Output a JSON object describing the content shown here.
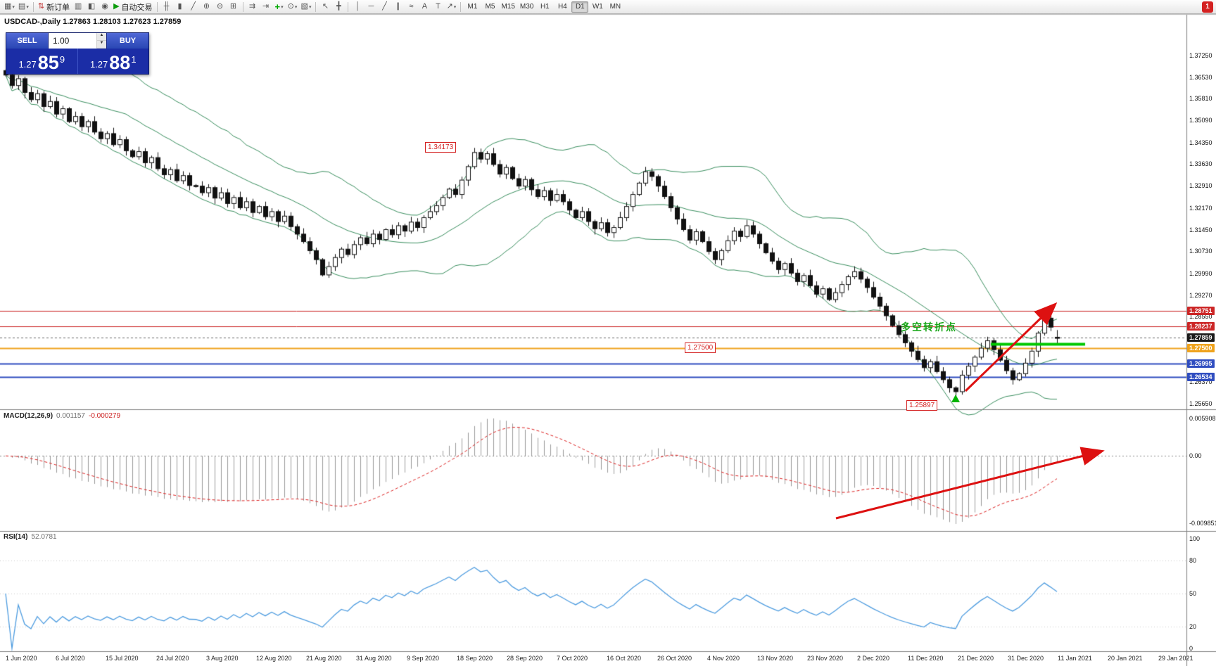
{
  "window": {
    "title_info": "USDCAD-,Daily  1.27863 1.28103 1.27623 1.27859"
  },
  "toolbar": {
    "new_order_label": "新订单",
    "autotrading_label": "自动交易",
    "timeframes": [
      "M1",
      "M5",
      "M15",
      "M30",
      "H1",
      "H4",
      "D1",
      "W1",
      "MN"
    ],
    "active_timeframe": "D1",
    "badge": "1"
  },
  "one_click": {
    "sell_label": "SELL",
    "buy_label": "BUY",
    "volume": "1.00",
    "sell_price": {
      "prefix": "1.27",
      "big": "85",
      "sup": "9"
    },
    "buy_price": {
      "prefix": "1.27",
      "big": "88",
      "sup": "1"
    }
  },
  "chart_data": [
    {
      "type": "candlestick",
      "symbol": "USDCAD-",
      "timeframe": "Daily",
      "ohlc_today": {
        "open": 1.27863,
        "high": 1.28103,
        "low": 1.27623,
        "close": 1.27859
      },
      "y_range": {
        "top": 1.3725,
        "bottom": 1.2565
      },
      "closes": [
        1.366,
        1.3625,
        1.3648,
        1.3602,
        1.3578,
        1.3598,
        1.3555,
        1.3572,
        1.353,
        1.3548,
        1.3505,
        1.3522,
        1.3488,
        1.3505,
        1.347,
        1.3448,
        1.3465,
        1.3428,
        1.3445,
        1.3408,
        1.3388,
        1.3405,
        1.3368,
        1.3385,
        1.3348,
        1.3328,
        1.3345,
        1.3308,
        1.3325,
        1.3292,
        1.329,
        1.3268,
        1.3285,
        1.325,
        1.3268,
        1.3232,
        1.3252,
        1.3218,
        1.3238,
        1.3202,
        1.3222,
        1.3188,
        1.3205,
        1.3172,
        1.319,
        1.3155,
        1.313,
        1.3105,
        1.3075,
        1.3045,
        1.2994,
        1.3022,
        1.3052,
        1.308,
        1.3062,
        1.3095,
        1.3118,
        1.3098,
        1.313,
        1.3112,
        1.3145,
        1.3128,
        1.3158,
        1.314,
        1.317,
        1.3152,
        1.3185,
        1.3205,
        1.3225,
        1.3252,
        1.328,
        1.3262,
        1.331,
        1.3355,
        1.3402,
        1.338,
        1.3398,
        1.3362,
        1.333,
        1.3352,
        1.3315,
        1.329,
        1.3312,
        1.3278,
        1.3255,
        1.3275,
        1.3242,
        1.3262,
        1.3238,
        1.321,
        1.3185,
        1.3205,
        1.3172,
        1.3148,
        1.3168,
        1.3135,
        1.3152,
        1.3185,
        1.3222,
        1.3262,
        1.33,
        1.3338,
        1.3322,
        1.329,
        1.3255,
        1.3218,
        1.318,
        1.3145,
        1.311,
        1.3138,
        1.3105,
        1.3072,
        1.3045,
        1.3075,
        1.3108,
        1.314,
        1.3122,
        1.3158,
        1.313,
        1.3098,
        1.3068,
        1.304,
        1.3012,
        1.3032,
        1.3,
        1.2972,
        1.2992,
        1.2958,
        1.293,
        1.2948,
        1.2912,
        1.2935,
        1.2962,
        1.2988,
        1.3005,
        1.298,
        1.2952,
        1.292,
        1.289,
        1.2858,
        1.2825,
        1.2795,
        1.2768,
        1.274,
        1.2712,
        1.2685,
        1.2705,
        1.2672,
        1.2645,
        1.2618,
        1.2605,
        1.266,
        1.269,
        1.272,
        1.275,
        1.2775,
        1.2745,
        1.271,
        1.2675,
        1.2645,
        1.2665,
        1.27,
        1.274,
        1.28,
        1.285,
        1.282,
        1.27859
      ],
      "key_point_overrides": [
        {
          "index": 74,
          "high": 1.34173
        },
        {
          "index": 150,
          "low": 1.25897
        },
        {
          "index": 164,
          "high": 1.288
        },
        {
          "index": 166,
          "open": 1.27863,
          "high": 1.28103,
          "low": 1.27623,
          "close": 1.27859
        }
      ],
      "overlays": {
        "bollinger": {
          "period": 20,
          "deviation": 2,
          "color": "#3a8f5f"
        }
      },
      "y_axis_labels": [
        "1.37250",
        "1.36530",
        "1.35810",
        "1.35090",
        "1.34350",
        "1.33630",
        "1.32910",
        "1.32170",
        "1.31450",
        "1.30730",
        "1.29990",
        "1.29270",
        "1.28550",
        "1.26370",
        "1.25650"
      ],
      "price_tags": [
        {
          "value": "1.28751",
          "color": "#cc2626"
        },
        {
          "value": "1.28237",
          "color": "#cc2626"
        },
        {
          "value": "1.27859",
          "color": "#1a1a1a"
        },
        {
          "value": "1.27500",
          "color": "#efa31d"
        },
        {
          "value": "1.26995",
          "color": "#2f4dc0"
        },
        {
          "value": "1.26534",
          "color": "#2f4dc0"
        }
      ],
      "hlines": [
        {
          "price": 1.28751,
          "color": "#cc2626",
          "width": 1
        },
        {
          "price": 1.28237,
          "color": "#cc2626",
          "width": 1
        },
        {
          "price": 1.27859,
          "color": "#666666",
          "width": 1,
          "dashed": true
        },
        {
          "price": 1.275,
          "color": "#efa31d",
          "width": 2
        },
        {
          "price": 1.26995,
          "color": "#2f4dc0",
          "width": 2
        },
        {
          "price": 1.26534,
          "color": "#2f4dc0",
          "width": 2
        }
      ],
      "annotations": {
        "boxed_labels": [
          {
            "text": "1.34173",
            "price": 1.34173,
            "bar": 74
          },
          {
            "text": "1.27500",
            "price": 1.275,
            "bar": 115
          },
          {
            "text": "1.25897",
            "price": 1.25897,
            "bar": 150,
            "position": "below"
          }
        ],
        "note": {
          "text": "多空转折点",
          "color": "#17a617"
        },
        "support_line": {
          "price": 1.2764,
          "color": "#00c800"
        },
        "trend_arrow": {
          "color": "#dd1111"
        },
        "low_marker": {
          "color": "#00b400"
        }
      },
      "x_axis_labels": [
        "1 Jun 2020",
        "6 Jul 2020",
        "15 Jul 2020",
        "24 Jul 2020",
        "3 Aug 2020",
        "12 Aug 2020",
        "21 Aug 2020",
        "31 Aug 2020",
        "9 Sep 2020",
        "18 Sep 2020",
        "28 Sep 2020",
        "7 Oct 2020",
        "16 Oct 2020",
        "26 Oct 2020",
        "4 Nov 2020",
        "13 Nov 2020",
        "23 Nov 2020",
        "2 Dec 2020",
        "11 Dec 2020",
        "21 Dec 2020",
        "31 Dec 2020",
        "11 Jan 2021",
        "20 Jan 2021",
        "29 Jan 2021"
      ]
    },
    {
      "type": "bar",
      "name": "MACD",
      "label": "MACD(12,26,9)",
      "value1": "0.001157",
      "value2": "-0.000279",
      "params": {
        "fast": 12,
        "slow": 26,
        "signal": 9
      },
      "y_axis_labels": [
        "0.005908",
        "0.00",
        "-0.009851"
      ],
      "colors": {
        "histogram": "#9a9a9a",
        "signal": "#dd2222"
      }
    },
    {
      "type": "line",
      "name": "RSI",
      "label": "RSI(14)",
      "value": "52.0781",
      "period": 14,
      "y_axis_labels": [
        "100",
        "80",
        "50",
        "20",
        "0"
      ],
      "levels": [
        80,
        50,
        20
      ],
      "color": "#4d9ce0"
    }
  ]
}
